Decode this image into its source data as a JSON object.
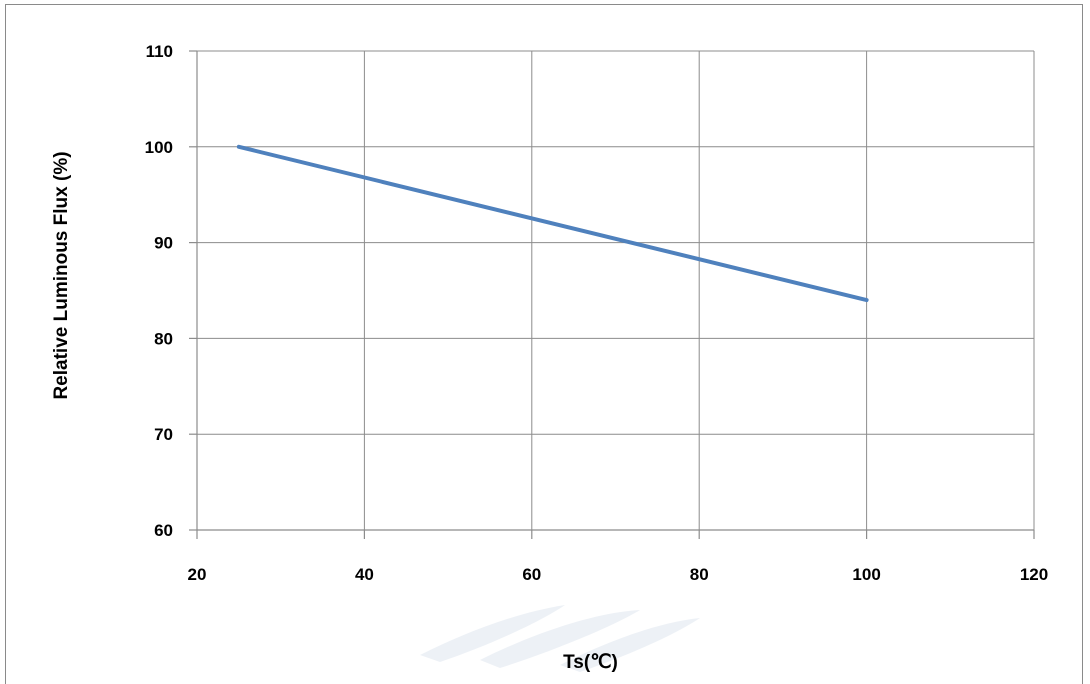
{
  "chart_data": {
    "type": "line",
    "xlabel": "Ts(℃)",
    "ylabel": "Relative Luminous Flux (%)",
    "xlim": [
      20,
      120
    ],
    "ylim": [
      60,
      110
    ],
    "x_ticks": [
      20,
      40,
      60,
      80,
      100,
      120
    ],
    "y_ticks": [
      60,
      70,
      80,
      90,
      100,
      110
    ],
    "grid": true,
    "series": [
      {
        "x": [
          25,
          100
        ],
        "y": [
          100,
          84
        ],
        "color": "#4f81bd"
      }
    ]
  }
}
